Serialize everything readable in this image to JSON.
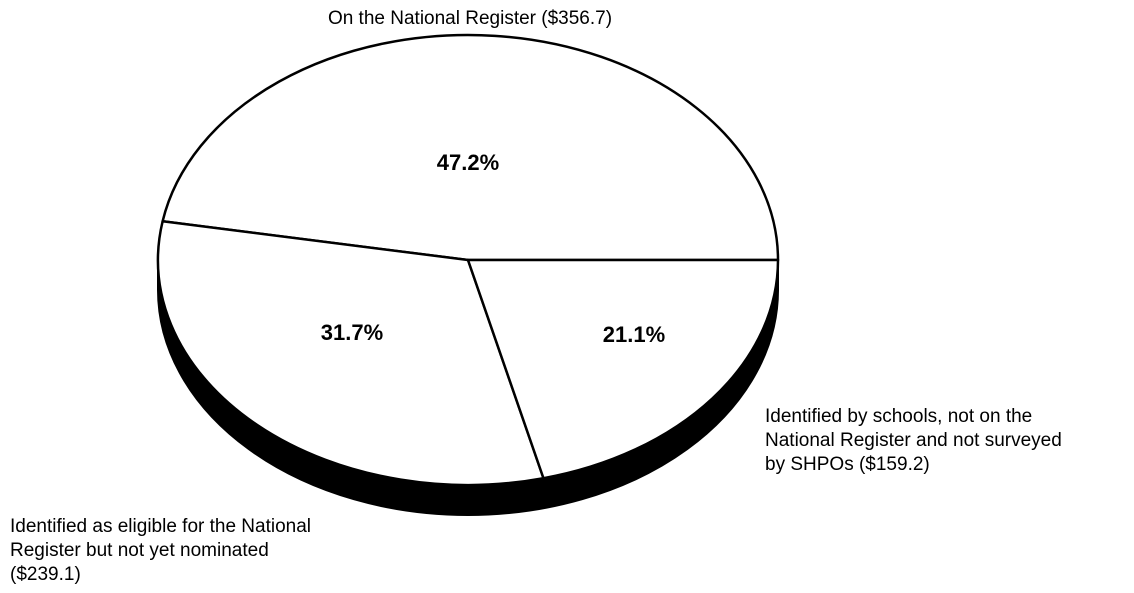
{
  "chart_data": {
    "type": "pie",
    "title": "",
    "style": "3d",
    "slices": [
      {
        "label_lines": [
          "On the National Register ($356.7)"
        ],
        "value": 356.7,
        "percent_label": "47.2%"
      },
      {
        "label_lines": [
          "Identified as eligible for the National",
          "Register but not yet nominated",
          "($239.1)"
        ],
        "value": 239.1,
        "percent_label": "31.7%"
      },
      {
        "label_lines": [
          "Identified by schools, not on the",
          "National Register and not surveyed",
          "by SHPOs ($159.2)"
        ],
        "value": 159.2,
        "percent_label": "21.1%"
      }
    ],
    "colors": {
      "fill": "#ffffff",
      "stroke": "#000000",
      "side": "#000000"
    }
  }
}
